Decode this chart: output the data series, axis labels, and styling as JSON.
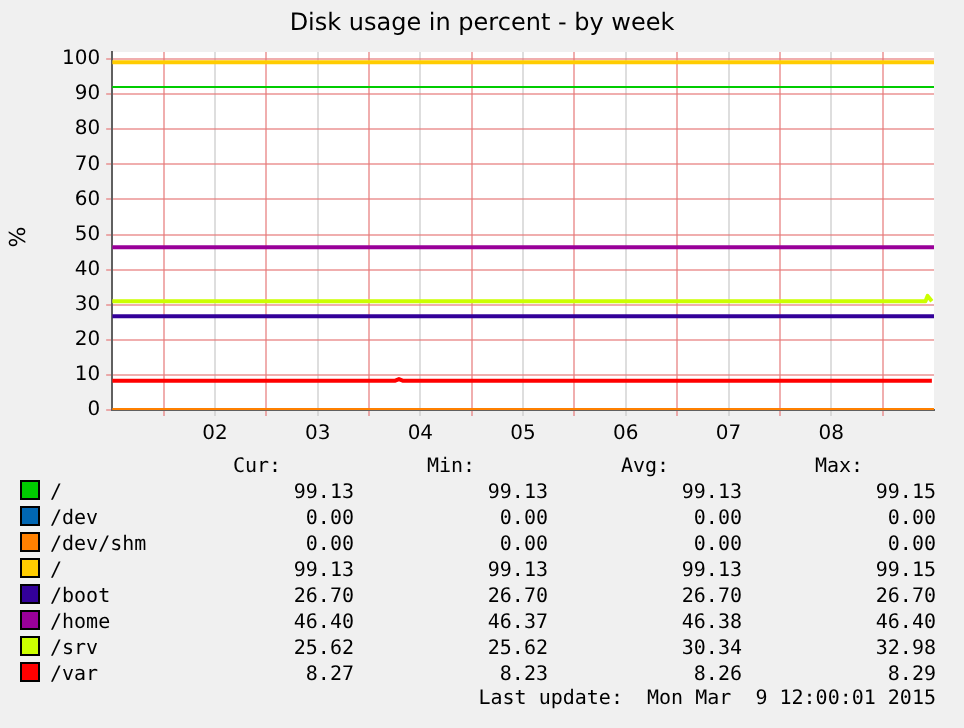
{
  "chart_data": {
    "type": "line",
    "title": "Disk usage in percent - by week",
    "ylabel": "%",
    "x": [
      "2015-03-01T12:00",
      "2015-03-09T12:00"
    ],
    "xlim": [
      "2015-03-01T12:00",
      "2015-03-09T12:00"
    ],
    "xticks": [
      {
        "value": "2015-03-02T00:00",
        "label": null
      },
      {
        "value": "2015-03-02T12:00",
        "label": "02"
      },
      {
        "value": "2015-03-03T00:00",
        "label": null
      },
      {
        "value": "2015-03-03T12:00",
        "label": "03"
      },
      {
        "value": "2015-03-04T00:00",
        "label": null
      },
      {
        "value": "2015-03-04T12:00",
        "label": "04"
      },
      {
        "value": "2015-03-05T00:00",
        "label": null
      },
      {
        "value": "2015-03-05T12:00",
        "label": "05"
      },
      {
        "value": "2015-03-06T00:00",
        "label": null
      },
      {
        "value": "2015-03-06T12:00",
        "label": "06"
      },
      {
        "value": "2015-03-07T00:00",
        "label": null
      },
      {
        "value": "2015-03-07T12:00",
        "label": "07"
      },
      {
        "value": "2015-03-08T00:00",
        "label": null
      },
      {
        "value": "2015-03-08T12:00",
        "label": "08"
      },
      {
        "value": "2015-03-09T00:00",
        "label": null
      }
    ],
    "ylim": [
      0,
      102
    ],
    "yticks": [
      0,
      10,
      20,
      30,
      40,
      50,
      60,
      70,
      80,
      90,
      100
    ],
    "grid": true,
    "legend": "bottom",
    "marker": "none",
    "line_style": "solid",
    "series": [
      {
        "name": "/",
        "color": "#00cc00",
        "values": [
          null,
          null
        ]
      },
      {
        "name": "/dev",
        "color": "#0066b3",
        "values": [
          null,
          null
        ]
      },
      {
        "name": "/dev/shm",
        "color": "#ff8000",
        "values": [
          0,
          0
        ]
      },
      {
        "name": "/",
        "color": "#ffcc00",
        "values": [
          99.1,
          99.1
        ]
      },
      {
        "name": "/boot",
        "color": "#330099",
        "values": [
          26.7,
          26.7
        ]
      },
      {
        "name": "/home",
        "color": "#990099",
        "values": [
          46.4,
          46.4
        ]
      },
      {
        "name": "/srv",
        "color": "#ccff00",
        "x": [
          "2015-03-01T12:00",
          "2015-03-09T10:00",
          "2015-03-09T10:30",
          "2015-03-09T11:30"
        ],
        "values": [
          31,
          31,
          32.5,
          31
        ]
      },
      {
        "name": "/var",
        "color": "#ff0000",
        "x": [
          "2015-03-01T12:00",
          "2015-03-04T06:00",
          "2015-03-04T07:00",
          "2015-03-04T08:00",
          "2015-03-09T11:30"
        ],
        "values": [
          8.3,
          8.3,
          8.8,
          8.3,
          8.3
        ]
      }
    ],
    "ref_lines": [
      {
        "axis": "y",
        "value": 92,
        "color": "#00cc00"
      }
    ],
    "annotations": [
      "Cur:",
      "Min:",
      "Avg:",
      "Max:",
      "99.13",
      "99.13",
      "99.13",
      "99.15",
      "0.00",
      "0.00",
      "0.00",
      "0.00",
      "0.00",
      "0.00",
      "0.00",
      "0.00",
      "99.13",
      "99.13",
      "99.13",
      "99.15",
      "26.70",
      "26.70",
      "26.70",
      "26.70",
      "46.40",
      "46.37",
      "46.38",
      "46.40",
      "25.62",
      "25.62",
      "30.34",
      "32.98",
      "8.27",
      "8.23",
      "8.26",
      "8.29",
      "Last update:  Mon Mar  9 12:00:01 2015"
    ]
  }
}
